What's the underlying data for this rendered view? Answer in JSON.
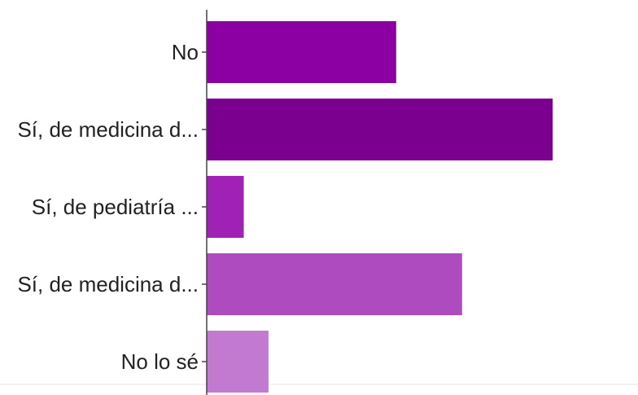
{
  "chart_data": {
    "type": "bar",
    "orientation": "horizontal",
    "categories": [
      "No",
      "Sí, de medicina d...",
      "Sí, de pediatría ...",
      "Sí, de medicina d...",
      "No lo sé"
    ],
    "values": [
      23,
      42,
      4.5,
      31,
      7.5
    ],
    "xlim": [
      0,
      50
    ],
    "colors": [
      "#8c00a3",
      "#7b0090",
      "#9f22b4",
      "#ad4bbf",
      "#c279d0"
    ],
    "title": "",
    "xlabel": "",
    "ylabel": "",
    "grid": false,
    "legend": "none"
  }
}
